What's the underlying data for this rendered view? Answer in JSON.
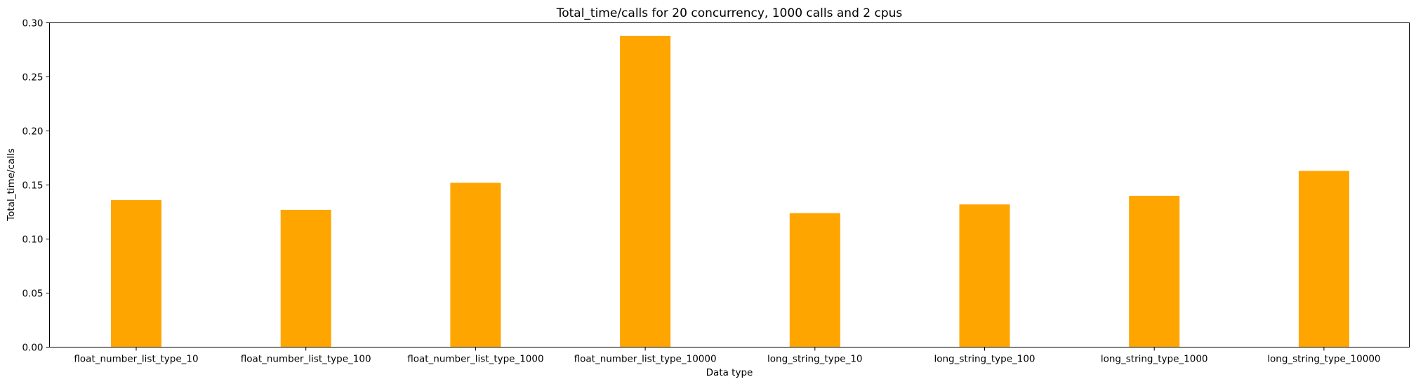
{
  "chart_data": {
    "type": "bar",
    "title": "Total_time/calls for 20 concurrency, 1000 calls and 2 cpus",
    "xlabel": "Data type",
    "ylabel": "Total_time/calls",
    "categories": [
      "float_number_list_type_10",
      "float_number_list_type_100",
      "float_number_list_type_1000",
      "float_number_list_type_10000",
      "long_string_type_10",
      "long_string_type_100",
      "long_string_type_1000",
      "long_string_type_10000"
    ],
    "values": [
      0.136,
      0.127,
      0.152,
      0.288,
      0.124,
      0.132,
      0.14,
      0.163
    ],
    "ylim": [
      0,
      0.3
    ],
    "yticks": [
      "0.00",
      "0.05",
      "0.10",
      "0.15",
      "0.20",
      "0.25",
      "0.30"
    ],
    "bar_color": "#ffa500",
    "grid": false,
    "legend": "none"
  }
}
